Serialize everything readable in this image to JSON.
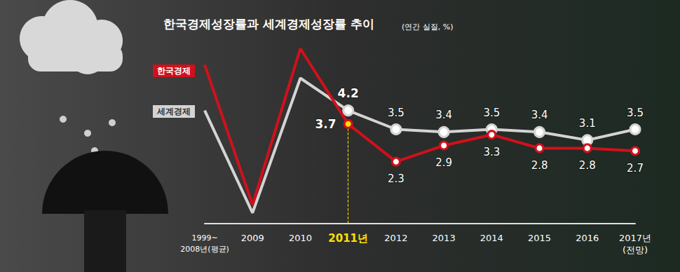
{
  "chart_data": {
    "type": "line",
    "title": "한국경제성장률과 세계경제성장률 추이",
    "subtitle": "(연간 실질, %)",
    "categories": [
      "1999~\n2008년(평균)",
      "2009",
      "2010",
      "2011년",
      "2012",
      "2013",
      "2014",
      "2015",
      "2016",
      "2017년\n(전망)"
    ],
    "series": [
      {
        "name": "한국경제",
        "color": "#d0111b",
        "marker": "circle",
        "values": [
          5.9,
          0.7,
          6.5,
          3.7,
          2.3,
          2.9,
          3.3,
          2.8,
          2.8,
          2.7
        ],
        "value_labels": [
          null,
          null,
          null,
          "3.7",
          "2.3",
          "2.9",
          "3.3",
          "2.8",
          "2.8",
          "2.7"
        ]
      },
      {
        "name": "세계경제",
        "color": "#d4d4d4",
        "marker": "circle",
        "values": [
          4.2,
          0.4,
          5.4,
          4.2,
          3.5,
          3.4,
          3.5,
          3.4,
          3.1,
          3.5
        ],
        "value_labels": [
          null,
          null,
          null,
          "4.2",
          "3.5",
          "3.4",
          "3.5",
          "3.4",
          "3.1",
          "3.5"
        ]
      }
    ],
    "ylim": [
      0,
      7
    ],
    "yticks": [
      0,
      7
    ],
    "grid": false,
    "data_labels": true,
    "tick_labels": "x"
  }
}
